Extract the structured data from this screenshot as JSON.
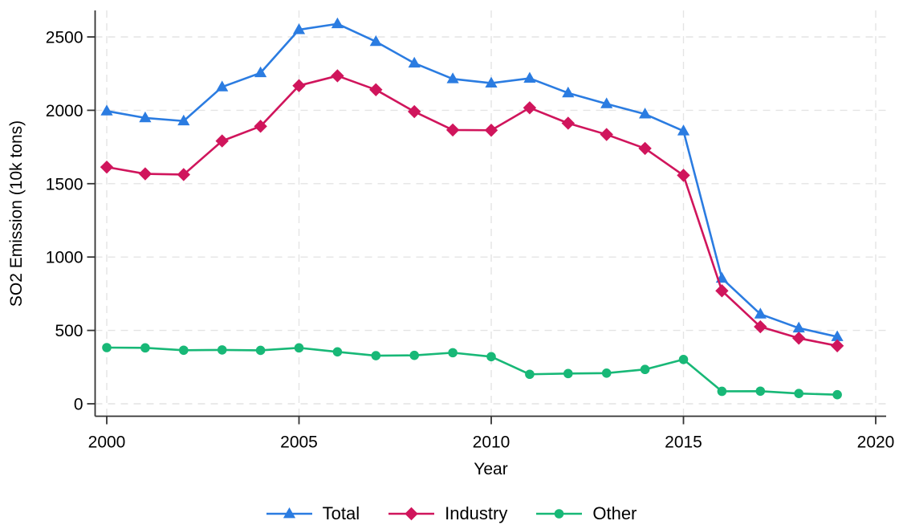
{
  "chart_data": {
    "type": "line",
    "title": "",
    "xlabel": "Year",
    "ylabel": "SO2 Emission (10k tons)",
    "xlim": [
      2000,
      2020
    ],
    "ylim": [
      0,
      2500
    ],
    "xticks": [
      2000,
      2005,
      2010,
      2015,
      2020
    ],
    "yticks": [
      0,
      500,
      1000,
      1500,
      2000,
      2500
    ],
    "grid": "dashed horizontal and vertical at ticks",
    "legend_position": "bottom-center",
    "x": [
      2000,
      2001,
      2002,
      2003,
      2004,
      2005,
      2006,
      2007,
      2008,
      2009,
      2010,
      2011,
      2012,
      2013,
      2014,
      2015,
      2016,
      2017,
      2018,
      2019
    ],
    "series": [
      {
        "name": "Total",
        "marker": "triangle",
        "color": "#2B7CE1",
        "values": [
          1995,
          1948,
          1927,
          2159,
          2255,
          2549,
          2589,
          2468,
          2321,
          2214,
          2185,
          2218,
          2118,
          2044,
          1974,
          1859,
          855,
          611,
          516,
          457
        ]
      },
      {
        "name": "Industry",
        "marker": "diamond",
        "color": "#D0155C",
        "values": [
          1613,
          1567,
          1562,
          1791,
          1891,
          2168,
          2235,
          2140,
          1991,
          1866,
          1864,
          2017,
          1912,
          1835,
          1740,
          1557,
          770,
          525,
          447,
          395
        ]
      },
      {
        "name": "Other",
        "marker": "circle",
        "color": "#18B877",
        "values": [
          383,
          381,
          365,
          367,
          364,
          381,
          354,
          328,
          330,
          348,
          321,
          201,
          206,
          209,
          234,
          302,
          85,
          86,
          70,
          62
        ]
      }
    ],
    "style": {
      "grid_color": "#E4E4E4",
      "axis_color": "#333333",
      "background": "#ffffff"
    }
  }
}
